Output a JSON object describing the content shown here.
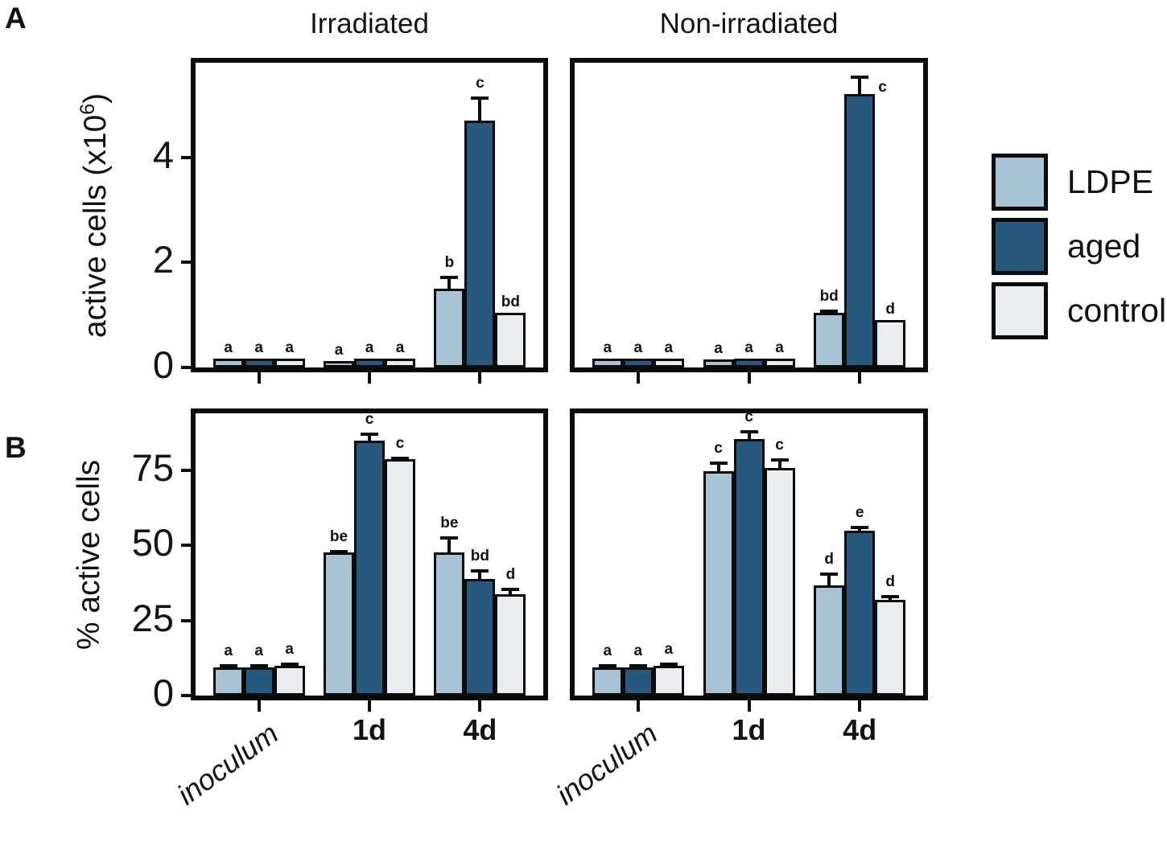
{
  "figure": {
    "panel_labels": [
      "A",
      "B"
    ],
    "background": "#ffffff"
  },
  "legend": {
    "position": "right",
    "items": [
      {
        "label": "LDPE",
        "color": "#a9c3d6"
      },
      {
        "label": "aged",
        "color": "#27597f"
      },
      {
        "label": "control",
        "color": "#e9edf0"
      }
    ]
  },
  "chart_data": {
    "type": "bar",
    "categories": [
      "inoculum",
      "1d",
      "4d"
    ],
    "series": [
      "LDPE",
      "aged",
      "control"
    ],
    "colors": {
      "LDPE": "#a9c3d6",
      "aged": "#27597f",
      "control": "#e9edf0"
    },
    "group_centers": [
      0.182,
      0.5,
      0.818
    ],
    "error_bars": "sd, upper only",
    "rows": [
      {
        "id": "A",
        "ylabel": {
          "pre": "active cells (x10",
          "sup": "6",
          "post": ")"
        },
        "ylim": [
          0,
          5.8
        ],
        "yticks": [
          0,
          2,
          4
        ],
        "panels": [
          {
            "title": "Irradiated",
            "groups": [
              {
                "category": "inoculum",
                "bars": [
                  {
                    "series": "LDPE",
                    "value": 0.13,
                    "err": 0,
                    "letter": "a"
                  },
                  {
                    "series": "aged",
                    "value": 0.13,
                    "err": 0,
                    "letter": "a"
                  },
                  {
                    "series": "control",
                    "value": 0.13,
                    "err": 0,
                    "letter": "a"
                  }
                ]
              },
              {
                "category": "1d",
                "bars": [
                  {
                    "series": "LDPE",
                    "value": 0.07,
                    "err": 0,
                    "letter": "a"
                  },
                  {
                    "series": "aged",
                    "value": 0.13,
                    "err": 0,
                    "letter": "a"
                  },
                  {
                    "series": "control",
                    "value": 0.13,
                    "err": 0,
                    "letter": "a"
                  }
                ]
              },
              {
                "category": "4d",
                "bars": [
                  {
                    "series": "LDPE",
                    "value": 1.45,
                    "err": 0.3,
                    "letter": "b"
                  },
                  {
                    "series": "aged",
                    "value": 4.65,
                    "err": 0.5,
                    "letter": "c"
                  },
                  {
                    "series": "control",
                    "value": 1.0,
                    "err": 0,
                    "letter": "bd"
                  }
                ]
              }
            ]
          },
          {
            "title": "Non-irradiated",
            "groups": [
              {
                "category": "inoculum",
                "bars": [
                  {
                    "series": "LDPE",
                    "value": 0.13,
                    "err": 0,
                    "letter": "a"
                  },
                  {
                    "series": "aged",
                    "value": 0.13,
                    "err": 0,
                    "letter": "a"
                  },
                  {
                    "series": "control",
                    "value": 0.13,
                    "err": 0,
                    "letter": "a"
                  }
                ]
              },
              {
                "category": "1d",
                "bars": [
                  {
                    "series": "LDPE",
                    "value": 0.1,
                    "err": 0,
                    "letter": "a"
                  },
                  {
                    "series": "aged",
                    "value": 0.13,
                    "err": 0,
                    "letter": "a"
                  },
                  {
                    "series": "control",
                    "value": 0.13,
                    "err": 0,
                    "letter": "a"
                  }
                ]
              },
              {
                "category": "4d",
                "bars": [
                  {
                    "series": "LDPE",
                    "value": 1.0,
                    "err": 0.1,
                    "letter": "bd"
                  },
                  {
                    "series": "aged",
                    "value": 5.15,
                    "err": 0.4,
                    "letter": "c",
                    "letter_side": "right"
                  },
                  {
                    "series": "control",
                    "value": 0.85,
                    "err": 0,
                    "letter": "d"
                  }
                ]
              }
            ]
          }
        ]
      },
      {
        "id": "B",
        "ylabel": {
          "pre": "% active cells",
          "sup": "",
          "post": ""
        },
        "ylim": [
          0,
          94
        ],
        "yticks": [
          0,
          25,
          50,
          75
        ],
        "panels": [
          {
            "title": null,
            "groups": [
              {
                "category": "inoculum",
                "bars": [
                  {
                    "series": "LDPE",
                    "value": 8.5,
                    "err": 2,
                    "letter": "a"
                  },
                  {
                    "series": "aged",
                    "value": 8.5,
                    "err": 2,
                    "letter": "a"
                  },
                  {
                    "series": "control",
                    "value": 9,
                    "err": 2,
                    "letter": "a"
                  }
                ]
              },
              {
                "category": "1d",
                "bars": [
                  {
                    "series": "LDPE",
                    "value": 47,
                    "err": 1.5,
                    "letter": "be"
                  },
                  {
                    "series": "aged",
                    "value": 84,
                    "err": 3.5,
                    "letter": "c"
                  },
                  {
                    "series": "control",
                    "value": 78,
                    "err": 1.5,
                    "letter": "c"
                  }
                ]
              },
              {
                "category": "4d",
                "bars": [
                  {
                    "series": "LDPE",
                    "value": 47,
                    "err": 6,
                    "letter": "be"
                  },
                  {
                    "series": "aged",
                    "value": 38,
                    "err": 4,
                    "letter": "bd"
                  },
                  {
                    "series": "control",
                    "value": 33,
                    "err": 3,
                    "letter": "d"
                  }
                ]
              }
            ]
          },
          {
            "title": null,
            "groups": [
              {
                "category": "inoculum",
                "bars": [
                  {
                    "series": "LDPE",
                    "value": 8.5,
                    "err": 2,
                    "letter": "a"
                  },
                  {
                    "series": "aged",
                    "value": 8.5,
                    "err": 2,
                    "letter": "a"
                  },
                  {
                    "series": "control",
                    "value": 9,
                    "err": 2,
                    "letter": "a"
                  }
                ]
              },
              {
                "category": "1d",
                "bars": [
                  {
                    "series": "LDPE",
                    "value": 74,
                    "err": 4,
                    "letter": "c"
                  },
                  {
                    "series": "aged",
                    "value": 84.5,
                    "err": 4,
                    "letter": "c"
                  },
                  {
                    "series": "control",
                    "value": 75,
                    "err": 4,
                    "letter": "c"
                  }
                ]
              },
              {
                "category": "4d",
                "bars": [
                  {
                    "series": "LDPE",
                    "value": 36,
                    "err": 5,
                    "letter": "d"
                  },
                  {
                    "series": "aged",
                    "value": 54,
                    "err": 2.5,
                    "letter": "e"
                  },
                  {
                    "series": "control",
                    "value": 31,
                    "err": 2.5,
                    "letter": "d"
                  }
                ]
              }
            ]
          }
        ]
      }
    ]
  }
}
